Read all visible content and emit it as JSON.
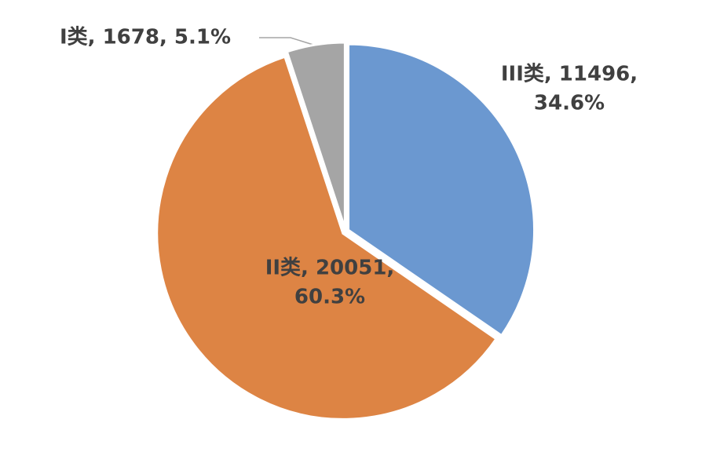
{
  "chart_data": {
    "type": "pie",
    "categories": [
      "III类",
      "II类",
      "I类"
    ],
    "values": [
      11496,
      20051,
      1678
    ],
    "colors": [
      "#6b98d0",
      "#dd8444",
      "#a5a5a5"
    ],
    "data_labels": [
      [
        "III类, 11496,",
        "34.6%"
      ],
      [
        "II类, 20051,",
        "60.3%"
      ],
      [
        "I类, 1678, 5.1%"
      ]
    ]
  }
}
